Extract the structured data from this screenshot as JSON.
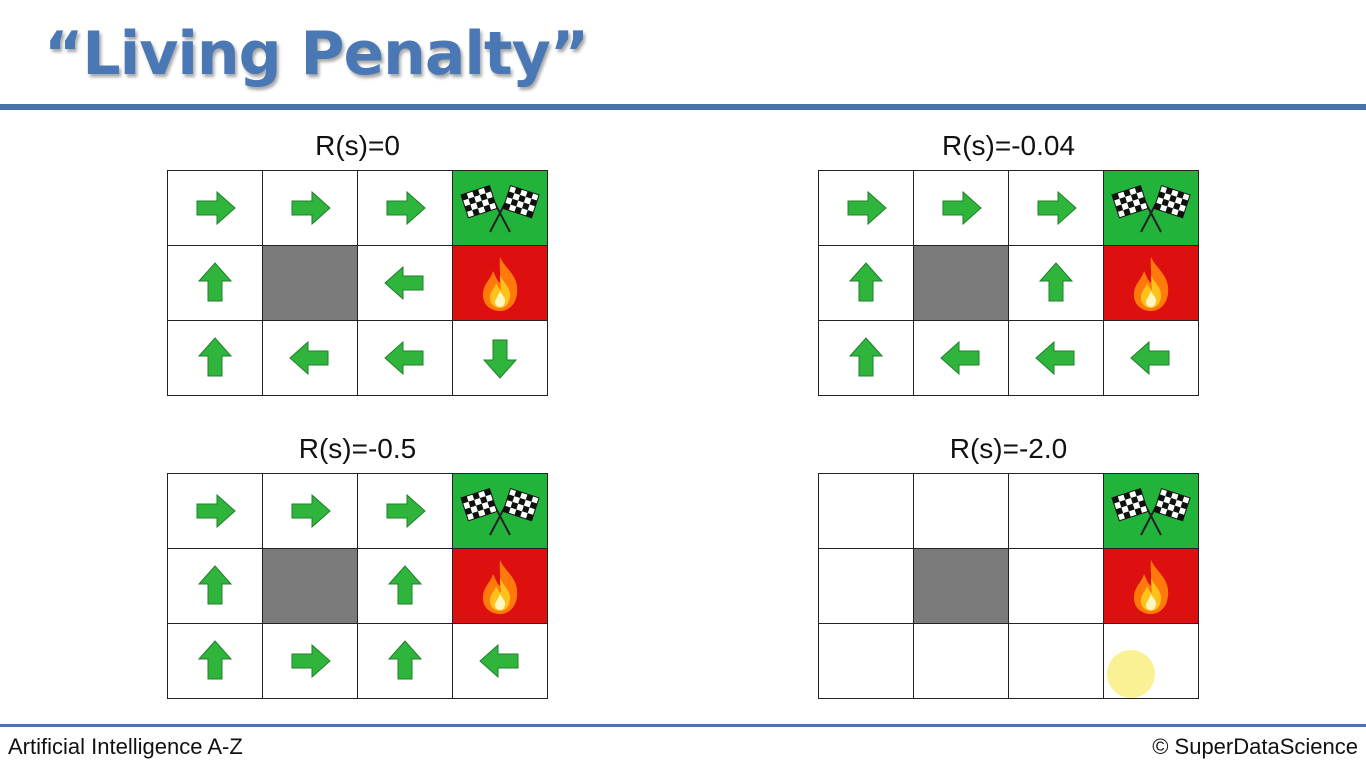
{
  "header": {
    "title": "“Living Penalty”"
  },
  "footer": {
    "left": "Artificial Intelligence A-Z",
    "right": "© SuperDataScience"
  },
  "colors": {
    "arrow": "#2fb53c",
    "goal": "#22b33a",
    "fire": "#dd0f0f",
    "wall": "#7b7b7b",
    "title": "#4a78b5"
  },
  "panels": [
    {
      "label": "R(s)=0",
      "grid": [
        [
          "right",
          "right",
          "right",
          "goal"
        ],
        [
          "up",
          "wall",
          "left",
          "fire"
        ],
        [
          "up",
          "left",
          "left",
          "down"
        ]
      ]
    },
    {
      "label": "R(s)=-0.04",
      "grid": [
        [
          "right",
          "right",
          "right",
          "goal"
        ],
        [
          "up",
          "wall",
          "up",
          "fire"
        ],
        [
          "up",
          "left",
          "left",
          "left"
        ]
      ]
    },
    {
      "label": "R(s)=-0.5",
      "grid": [
        [
          "right",
          "right",
          "right",
          "goal"
        ],
        [
          "up",
          "wall",
          "up",
          "fire"
        ],
        [
          "up",
          "right",
          "up",
          "left"
        ]
      ]
    },
    {
      "label": "R(s)=-2.0",
      "grid": [
        [
          "empty",
          "empty",
          "empty",
          "goal"
        ],
        [
          "empty",
          "wall",
          "empty",
          "fire"
        ],
        [
          "empty",
          "empty",
          "empty",
          "empty"
        ]
      ]
    }
  ]
}
